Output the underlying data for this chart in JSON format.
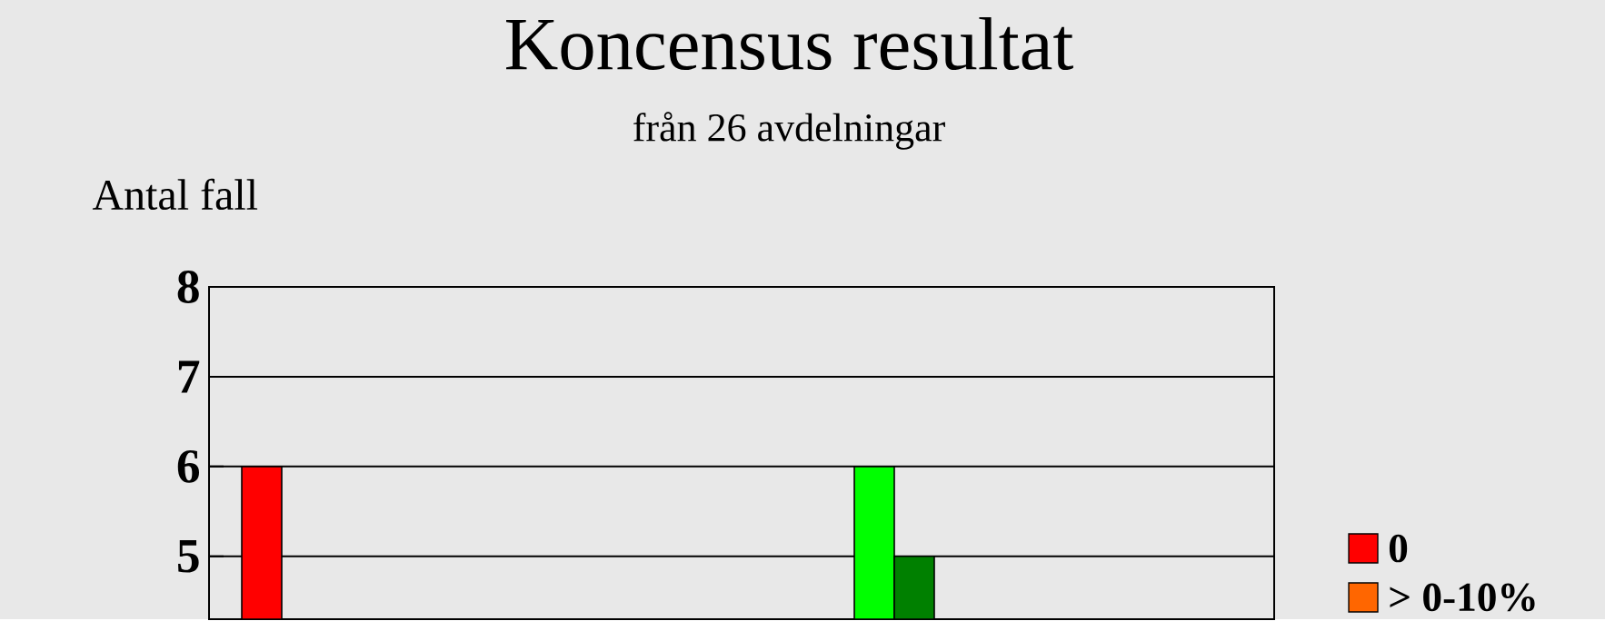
{
  "chart_data": {
    "type": "bar",
    "title": "Koncensus resultat",
    "subtitle": "från 26 avdelningar",
    "ylabel": "Antal fall",
    "categories": [
      null,
      null
    ],
    "series": [
      {
        "name": "0",
        "color": "#ff0000",
        "values": [
          6,
          null
        ]
      },
      {
        "name": "> 0-10%",
        "color": "#ff6600",
        "values": [
          null,
          null
        ]
      },
      {
        "color": "#00ff00",
        "values": [
          null,
          6
        ]
      },
      {
        "color": "#008000",
        "values": [
          null,
          5
        ]
      }
    ],
    "ylim": [
      4.3,
      8
    ],
    "yticks": [
      5,
      6,
      7,
      8
    ],
    "grid": "y",
    "legend": "right",
    "tick_labels": "y"
  }
}
